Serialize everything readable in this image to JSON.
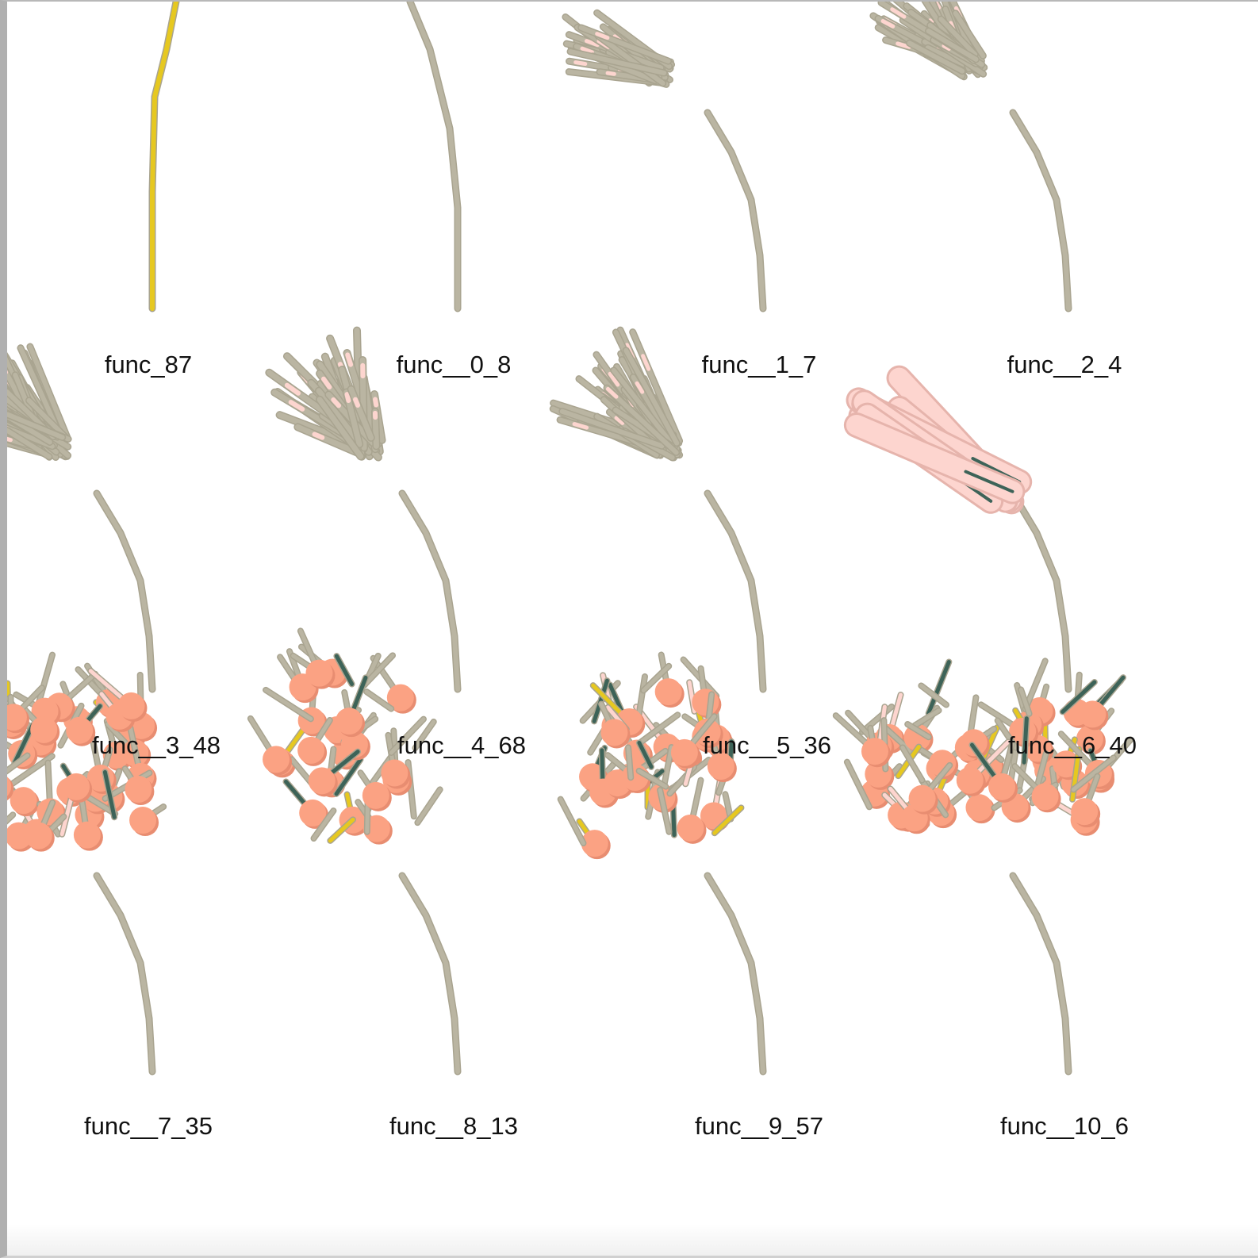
{
  "colors": {
    "stem": "#bab5a2",
    "stem_dark": "#a9a490",
    "yellow": "#e6c820",
    "pink": "#fdd5cf",
    "salmon": "#fba283",
    "teal": "#3d6358"
  },
  "plants": [
    {
      "label": "func_87",
      "style": "yellow-stem"
    },
    {
      "label": "func__0_8",
      "style": "bare-stem"
    },
    {
      "label": "func__1_7",
      "style": "fan-small"
    },
    {
      "label": "func__2_4",
      "style": "fan-medium"
    },
    {
      "label": "func__3_48",
      "style": "fan-wide"
    },
    {
      "label": "func__4_68",
      "style": "fan-thick"
    },
    {
      "label": "func__5_36",
      "style": "fan-medium"
    },
    {
      "label": "func__6_40",
      "style": "pink-cluster"
    },
    {
      "label": "func__7_35",
      "style": "flower-dense"
    },
    {
      "label": "func__8_13",
      "style": "flower-sparse"
    },
    {
      "label": "func__9_57",
      "style": "flower-medium"
    },
    {
      "label": "func__10_6",
      "style": "flower-wide"
    }
  ]
}
